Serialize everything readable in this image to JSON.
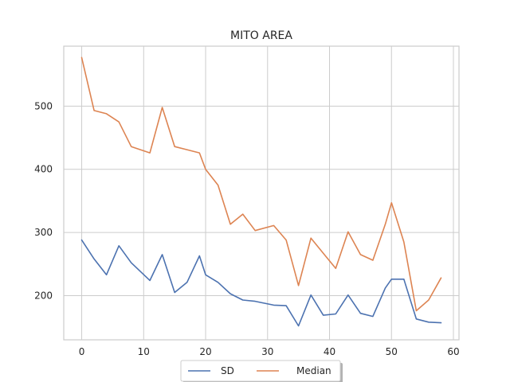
{
  "chart_data": {
    "type": "line",
    "title": "MITO AREA",
    "xlabel": "",
    "ylabel": "",
    "xlim": [
      -2.9,
      60.9
    ],
    "ylim": [
      130,
      595
    ],
    "x_ticks": [
      0,
      10,
      20,
      30,
      40,
      50,
      60
    ],
    "y_ticks": [
      200,
      300,
      400,
      500
    ],
    "grid": true,
    "legend_position": "bottom-center",
    "series": [
      {
        "name": "SD",
        "color": "#4c72b0",
        "x": [
          0,
          2,
          4,
          6,
          8,
          11,
          13,
          15,
          17,
          19,
          20,
          22,
          24,
          26,
          28,
          31,
          33,
          35,
          37,
          39,
          41,
          43,
          45,
          47,
          49,
          50,
          52,
          54,
          56,
          58
        ],
        "values": [
          288,
          258,
          233,
          279,
          252,
          224,
          265,
          205,
          221,
          263,
          233,
          221,
          203,
          193,
          191,
          185,
          184,
          152,
          201,
          169,
          171,
          201,
          172,
          167,
          212,
          226,
          226,
          163,
          158,
          157
        ]
      },
      {
        "name": "Median",
        "color": "#dd8452",
        "x": [
          0,
          2,
          4,
          6,
          8,
          11,
          13,
          15,
          17,
          19,
          20,
          22,
          24,
          26,
          28,
          31,
          33,
          35,
          37,
          39,
          41,
          43,
          45,
          47,
          49,
          50,
          52,
          54,
          56,
          58
        ],
        "values": [
          577,
          493,
          488,
          475,
          436,
          426,
          498,
          436,
          431,
          426,
          400,
          375,
          313,
          329,
          303,
          311,
          288,
          216,
          291,
          267,
          243,
          301,
          265,
          256,
          313,
          347,
          285,
          176,
          193,
          228
        ]
      }
    ]
  }
}
